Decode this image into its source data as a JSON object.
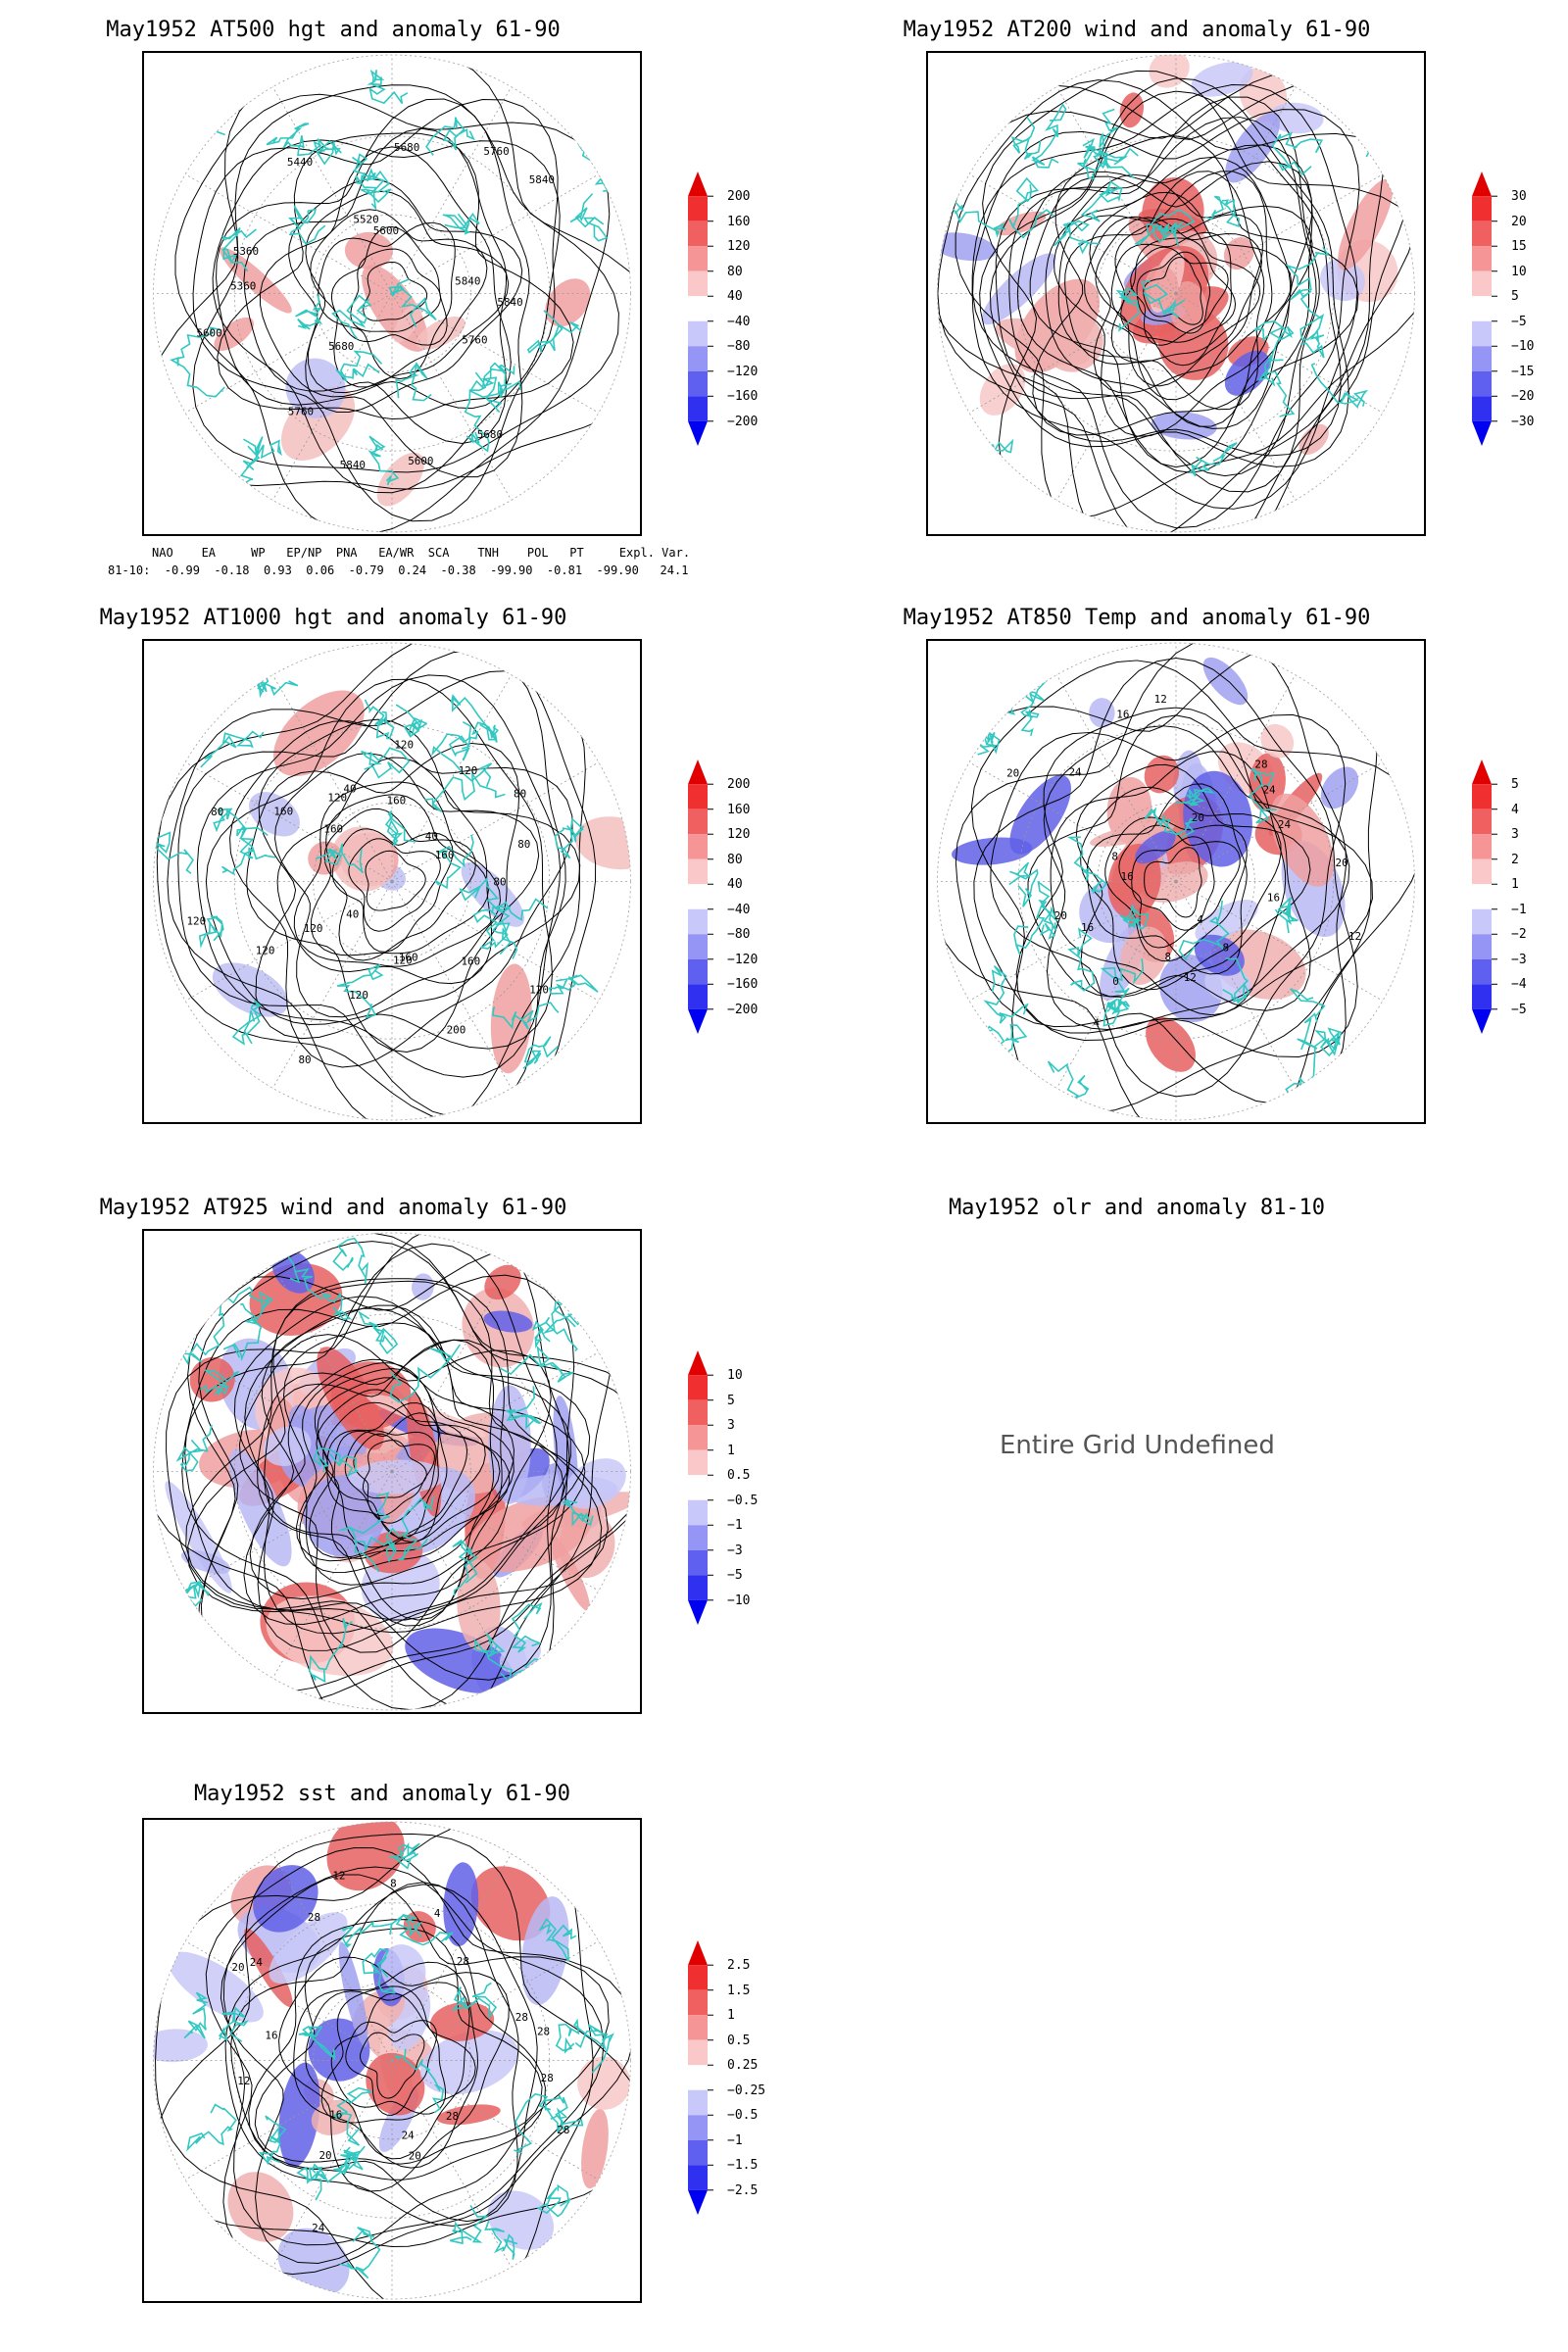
{
  "panels": [
    {
      "id": "p1",
      "title": "May1952 AT500 hgt and anomaly 61-90",
      "contour_labels": [
        "5840",
        "5760",
        "5680",
        "5600",
        "5840",
        "5760",
        "5680",
        "5600",
        "5360",
        "5360",
        "5440",
        "5520",
        "5600",
        "5680",
        "5760",
        "5840",
        "5840"
      ],
      "colorbar": {
        "labels": [
          "200",
          "160",
          "120",
          "80",
          "40",
          "−40",
          "−80",
          "−120",
          "−160",
          "−200"
        ]
      }
    },
    {
      "id": "p2",
      "title": "May1952 AT200 wind and anomaly 61-90",
      "colorbar": {
        "labels": [
          "30",
          "20",
          "15",
          "10",
          "5",
          "−5",
          "−10",
          "−15",
          "−20",
          "−30"
        ]
      }
    },
    {
      "id": "p3",
      "title": "May1952 AT1000 hgt and anomaly 61-90",
      "contour_labels": [
        "80",
        "120",
        "160",
        "200",
        "160",
        "120",
        "120",
        "80",
        "40",
        "120",
        "120",
        "120",
        "80",
        "160",
        "160",
        "120",
        "40",
        "160",
        "120",
        "120",
        "40",
        "80",
        "160",
        "80"
      ],
      "colorbar": {
        "labels": [
          "200",
          "160",
          "120",
          "80",
          "40",
          "−40",
          "−80",
          "−120",
          "−160",
          "−200"
        ]
      }
    },
    {
      "id": "p4",
      "title": "May1952 AT850 Temp and anomaly 61-90",
      "contour_labels": [
        "16",
        "12",
        "8",
        "4",
        "12",
        "8",
        "4",
        "0",
        "16",
        "20",
        "16",
        "8",
        "20",
        "24",
        "16",
        "12",
        "20",
        "28",
        "24",
        "24",
        "20"
      ],
      "colorbar": {
        "labels": [
          "5",
          "4",
          "3",
          "2",
          "1",
          "−1",
          "−2",
          "−3",
          "−4",
          "−5"
        ]
      }
    },
    {
      "id": "p5",
      "title": "May1952 AT925 wind and anomaly 61-90",
      "colorbar": {
        "labels": [
          "10",
          "5",
          "3",
          "1",
          "0.5",
          "−0.5",
          "−1",
          "−3",
          "−5",
          "−10"
        ]
      }
    },
    {
      "id": "p6",
      "title": "May1952 olr and anomaly 81-10",
      "message": "Entire Grid Undefined"
    },
    {
      "id": "p7",
      "title": "May1952 sst and anomaly 61-90",
      "contour_labels": [
        "28",
        "28",
        "28",
        "24",
        "20",
        "24",
        "20",
        "16",
        "12",
        "16",
        "20",
        "24",
        "28",
        "12",
        "8",
        "4",
        "28",
        "28",
        "28"
      ],
      "colorbar": {
        "labels": [
          "2.5",
          "1.5",
          "1",
          "0.5",
          "0.25",
          "−0.25",
          "−0.5",
          "−1",
          "−1.5",
          "−2.5"
        ]
      }
    }
  ],
  "indices": {
    "header": "NAO    EA     WP   EP/NP  PNA   EA/WR  SCA    TNH    POL   PT     Expl. Var.",
    "values": "81-10:  -0.99  -0.18  0.93  0.06  -0.79  0.24  -0.38  -99.90  -0.81  -99.90   24.1"
  },
  "colors": {
    "positive_max": "#e00000",
    "positive_light": "#f5c0c0",
    "negative_max": "#0000f0",
    "negative_light": "#c0c0f5",
    "coastline": "#30c8c0"
  }
}
